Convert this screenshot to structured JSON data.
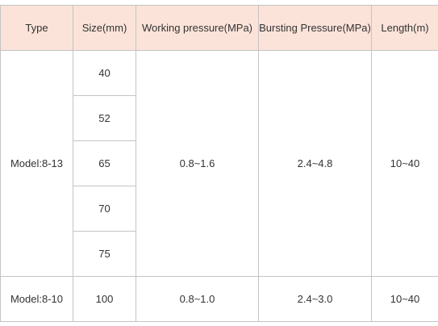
{
  "table": {
    "header": [
      "Type",
      "Size(mm)",
      "Working pressure(MPa)",
      "Bursting Pressure(MPa)",
      "Length(m)"
    ],
    "groups": [
      {
        "type": "Model:8-13",
        "sizes": [
          "40",
          "52",
          "65",
          "70",
          "75"
        ],
        "working": "0.8~1.6",
        "bursting": "2.4~4.8",
        "length": "10~40"
      },
      {
        "type": "Model:8-10",
        "sizes": [
          "100"
        ],
        "working": "0.8~1.0",
        "bursting": "2.4~3.0",
        "length": "10~40"
      }
    ]
  }
}
